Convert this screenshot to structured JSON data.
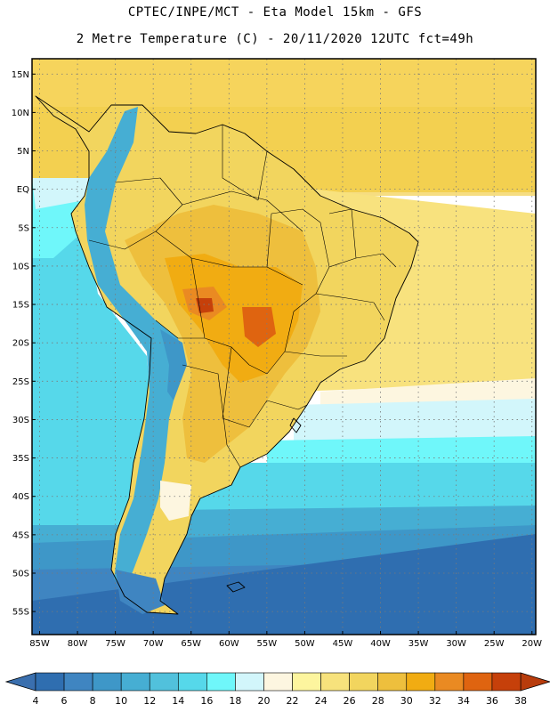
{
  "header": {
    "title_line1": "CPTEC/INPE/MCT  -   Eta Model 15km  -  GFS",
    "title_line2": "2 Metre Temperature (C) - 20/11/2020 12UTC fct=49h"
  },
  "map": {
    "lon_range": [
      -86,
      -19.5
    ],
    "lat_range": [
      -58,
      17
    ],
    "lat_ticks": [
      {
        "value": 15,
        "label": "15N"
      },
      {
        "value": 10,
        "label": "10N"
      },
      {
        "value": 5,
        "label": "5N"
      },
      {
        "value": 0,
        "label": "EQ"
      },
      {
        "value": -5,
        "label": "5S"
      },
      {
        "value": -10,
        "label": "10S"
      },
      {
        "value": -15,
        "label": "15S"
      },
      {
        "value": -20,
        "label": "20S"
      },
      {
        "value": -25,
        "label": "25S"
      },
      {
        "value": -30,
        "label": "30S"
      },
      {
        "value": -35,
        "label": "35S"
      },
      {
        "value": -40,
        "label": "40S"
      },
      {
        "value": -45,
        "label": "45S"
      },
      {
        "value": -50,
        "label": "50S"
      },
      {
        "value": -55,
        "label": "55S"
      }
    ],
    "lon_ticks": [
      {
        "value": -85,
        "label": "85W"
      },
      {
        "value": -80,
        "label": "80W"
      },
      {
        "value": -75,
        "label": "75W"
      },
      {
        "value": -70,
        "label": "70W"
      },
      {
        "value": -65,
        "label": "65W"
      },
      {
        "value": -60,
        "label": "60W"
      },
      {
        "value": -55,
        "label": "55W"
      },
      {
        "value": -50,
        "label": "50W"
      },
      {
        "value": -45,
        "label": "45W"
      },
      {
        "value": -40,
        "label": "40W"
      },
      {
        "value": -35,
        "label": "35W"
      },
      {
        "value": -30,
        "label": "30W"
      },
      {
        "value": -25,
        "label": "25W"
      },
      {
        "value": -20,
        "label": "20W"
      }
    ]
  },
  "colorbar": {
    "below_color": "#3a6fae",
    "above_color": "#b83c0c",
    "bins": [
      {
        "color": "#2f6eb0"
      },
      {
        "color": "#3f85c1"
      },
      {
        "color": "#3e97c8"
      },
      {
        "color": "#46aed3"
      },
      {
        "color": "#51c1dc"
      },
      {
        "color": "#56d8ea"
      },
      {
        "color": "#6ff7fa"
      },
      {
        "color": "#d2f6fb"
      },
      {
        "color": "#fdf6e0"
      },
      {
        "color": "#fdf59e"
      },
      {
        "color": "#f7e27c"
      },
      {
        "color": "#f2d55e"
      },
      {
        "color": "#eebf3d"
      },
      {
        "color": "#f1ac12"
      },
      {
        "color": "#ea8a22"
      },
      {
        "color": "#df6410"
      },
      {
        "color": "#c6400a"
      }
    ],
    "labels": [
      "4",
      "6",
      "8",
      "10",
      "12",
      "14",
      "16",
      "18",
      "20",
      "22",
      "24",
      "26",
      "28",
      "30",
      "32",
      "34",
      "36",
      "38"
    ]
  }
}
